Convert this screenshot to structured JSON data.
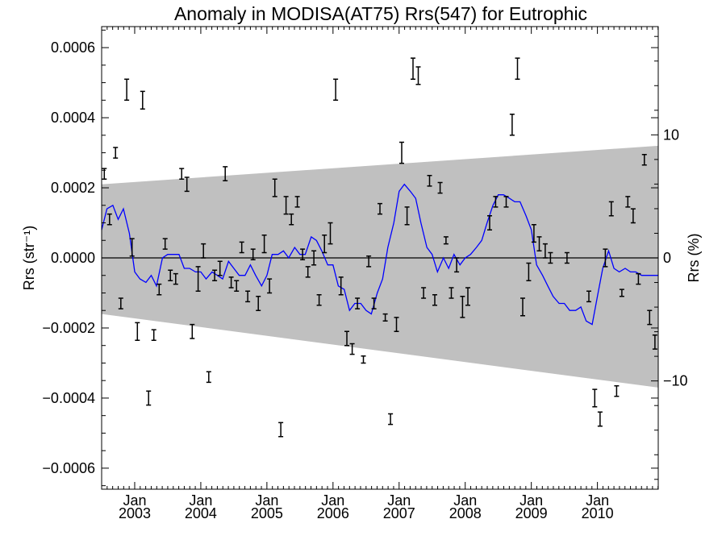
{
  "chart_data": {
    "type": "scatter",
    "title": "Anomaly in MODISA(AT75) Rrs(547) for Eutrophic",
    "ylabel_left": "Rrs (str⁻¹)",
    "ylabel_right": "Rrs (%)",
    "xlim": [
      2002.5,
      2010.92
    ],
    "ylim": [
      -0.00066,
      0.00066
    ],
    "y2lim": [
      -18.8,
      18.8
    ],
    "y_ticks": [
      -0.0006,
      -0.0004,
      -0.0002,
      0.0,
      0.0002,
      0.0004,
      0.0006
    ],
    "y_tick_labels": [
      "−0.0006",
      "−0.0004",
      "−0.0002",
      "0.0000",
      "0.0002",
      "0.0004",
      "0.0006"
    ],
    "y2_ticks": [
      -10,
      0,
      10
    ],
    "y2_tick_labels": [
      "−10",
      "0",
      "10"
    ],
    "x_ticks": [
      {
        "x": 2003.0,
        "month": "Jan",
        "year": "2003"
      },
      {
        "x": 2004.0,
        "month": "Jan",
        "year": "2004"
      },
      {
        "x": 2005.0,
        "month": "Jan",
        "year": "2005"
      },
      {
        "x": 2006.0,
        "month": "Jan",
        "year": "2006"
      },
      {
        "x": 2007.0,
        "month": "Jan",
        "year": "2007"
      },
      {
        "x": 2008.0,
        "month": "Jan",
        "year": "2008"
      },
      {
        "x": 2009.0,
        "month": "Jan",
        "year": "2009"
      },
      {
        "x": 2010.0,
        "month": "Jan",
        "year": "2010"
      }
    ],
    "zero_line": 0.0,
    "band": {
      "x": [
        2002.5,
        2010.92
      ],
      "upper": [
        0.00021,
        0.00032
      ],
      "lower": [
        -0.00016,
        -0.00037
      ],
      "color": "#c0c0c0"
    },
    "colors": {
      "line": "#0000ff",
      "points": "#000000",
      "band": "#c0c0c0"
    },
    "series": [
      {
        "kind": "errorbar",
        "x": [
          2002.54,
          2002.62,
          2002.71,
          2002.79,
          2002.88,
          2002.96,
          2003.04,
          2003.12,
          2003.21,
          2003.29,
          2003.37,
          2003.46,
          2003.54,
          2003.62,
          2003.71,
          2003.79,
          2003.87,
          2003.96,
          2004.04,
          2004.12,
          2004.21,
          2004.29,
          2004.37,
          2004.46,
          2004.54,
          2004.62,
          2004.71,
          2004.79,
          2004.87,
          2004.96,
          2005.04,
          2005.12,
          2005.21,
          2005.29,
          2005.37,
          2005.46,
          2005.54,
          2005.62,
          2005.71,
          2005.79,
          2005.87,
          2005.96,
          2006.04,
          2006.12,
          2006.21,
          2006.29,
          2006.37,
          2006.46,
          2006.54,
          2006.62,
          2006.71,
          2006.79,
          2006.87,
          2006.96,
          2007.04,
          2007.12,
          2007.21,
          2007.29,
          2007.37,
          2007.46,
          2007.54,
          2007.62,
          2007.71,
          2007.79,
          2007.87,
          2007.96,
          2008.04,
          2008.37,
          2008.46,
          2008.62,
          2008.71,
          2008.79,
          2008.87,
          2008.96,
          2009.04,
          2009.12,
          2009.21,
          2009.29,
          2009.54,
          2009.87,
          2009.96,
          2010.04,
          2010.12,
          2010.21,
          2010.29,
          2010.37,
          2010.46,
          2010.54,
          2010.62,
          2010.71,
          2010.79,
          2010.87
        ],
        "y": [
          0.00024,
          0.00011,
          0.0003,
          -0.00013,
          0.00048,
          3e-05,
          -0.00021,
          0.00045,
          -0.0004,
          -0.00022,
          -9e-05,
          4e-05,
          -5e-05,
          -6e-05,
          0.00024,
          0.00021,
          -0.00021,
          -6e-05,
          2e-05,
          -0.00034,
          -5e-05,
          -3e-05,
          0.00024,
          -7e-05,
          -8e-05,
          3e-05,
          -0.00011,
          1e-05,
          -0.00013,
          4e-05,
          -8e-05,
          0.0002,
          -0.00049,
          0.00015,
          0.00011,
          0.00016,
          1e-05,
          -4e-05,
          0.0,
          -0.00012,
          4e-05,
          7e-05,
          0.00048,
          -8e-05,
          -0.00023,
          -0.00026,
          -0.00013,
          -0.00029,
          -1e-05,
          -0.00013,
          0.00014,
          -0.00017,
          -0.00046,
          -0.00019,
          0.0003,
          0.00012,
          0.00054,
          0.00052,
          -0.0001,
          0.00022,
          -0.00012,
          0.0002,
          5e-05,
          -0.0001,
          -2e-05,
          -0.00014,
          -0.00011,
          0.0001,
          0.00016,
          0.00016,
          0.00038,
          0.00054,
          -0.00014,
          -4e-05,
          7e-05,
          4e-05,
          2e-05,
          0.0,
          0.0,
          -0.00011,
          -0.0004,
          -0.00046,
          0.0,
          0.00014,
          -0.00038,
          -0.0001,
          0.00016,
          0.00012,
          -6e-05,
          0.00028,
          -0.00017,
          -0.00024
        ],
        "err": [
          1.5e-05,
          1.5e-05,
          1.5e-05,
          1.5e-05,
          3e-05,
          2.5e-05,
          2.5e-05,
          2.5e-05,
          2e-05,
          1.5e-05,
          1.5e-05,
          1.5e-05,
          1.5e-05,
          1.5e-05,
          1.5e-05,
          2e-05,
          2e-05,
          3.5e-05,
          2e-05,
          1.5e-05,
          1.5e-05,
          2e-05,
          2e-05,
          1.5e-05,
          1.5e-05,
          1.5e-05,
          1.5e-05,
          1.5e-05,
          2e-05,
          2.5e-05,
          2e-05,
          2.5e-05,
          2e-05,
          2.5e-05,
          1.5e-05,
          1.5e-05,
          1.5e-05,
          1.5e-05,
          2e-05,
          1.5e-05,
          2.5e-05,
          3e-05,
          3e-05,
          2.5e-05,
          2e-05,
          1.5e-05,
          1.5e-05,
          1e-05,
          1.5e-05,
          1.5e-05,
          1.5e-05,
          1e-05,
          1.5e-05,
          2e-05,
          3e-05,
          2.5e-05,
          3e-05,
          2.5e-05,
          1.5e-05,
          1.5e-05,
          1.5e-05,
          1.5e-05,
          1e-05,
          1.5e-05,
          2e-05,
          3e-05,
          2.5e-05,
          2e-05,
          1.5e-05,
          1.5e-05,
          3e-05,
          3e-05,
          2.5e-05,
          2.5e-05,
          2.5e-05,
          2e-05,
          2e-05,
          1.5e-05,
          1.5e-05,
          1.5e-05,
          2.5e-05,
          2e-05,
          2.5e-05,
          2e-05,
          1.5e-05,
          1e-05,
          1.5e-05,
          2e-05,
          1.5e-05,
          1.5e-05,
          2e-05,
          2e-05
        ]
      },
      {
        "kind": "line",
        "x": [
          2002.5,
          2002.58,
          2002.67,
          2002.75,
          2002.83,
          2002.92,
          2003.0,
          2003.08,
          2003.17,
          2003.25,
          2003.33,
          2003.42,
          2003.5,
          2003.58,
          2003.67,
          2003.75,
          2003.83,
          2003.92,
          2004.0,
          2004.08,
          2004.17,
          2004.25,
          2004.33,
          2004.42,
          2004.5,
          2004.58,
          2004.67,
          2004.75,
          2004.83,
          2004.92,
          2005.0,
          2005.08,
          2005.17,
          2005.25,
          2005.33,
          2005.42,
          2005.5,
          2005.58,
          2005.67,
          2005.75,
          2005.83,
          2005.92,
          2006.0,
          2006.08,
          2006.17,
          2006.25,
          2006.33,
          2006.42,
          2006.5,
          2006.58,
          2006.67,
          2006.75,
          2006.83,
          2006.92,
          2007.0,
          2007.08,
          2007.17,
          2007.25,
          2007.33,
          2007.42,
          2007.5,
          2007.58,
          2007.67,
          2007.75,
          2007.83,
          2007.92,
          2008.0,
          2008.08,
          2008.17,
          2008.25,
          2008.33,
          2008.42,
          2008.5,
          2008.58,
          2008.67,
          2008.75,
          2008.83,
          2008.92,
          2009.0,
          2009.08,
          2009.17,
          2009.25,
          2009.33,
          2009.42,
          2009.5,
          2009.58,
          2009.67,
          2009.75,
          2009.83,
          2009.92,
          2010.0,
          2010.08,
          2010.17,
          2010.25,
          2010.33,
          2010.42,
          2010.5,
          2010.58,
          2010.67,
          2010.75,
          2010.83,
          2010.92
        ],
        "y": [
          8e-05,
          0.00014,
          0.00015,
          0.00011,
          0.00014,
          7e-05,
          -4e-05,
          -6e-05,
          -7e-05,
          -5e-05,
          -8e-05,
          0.0,
          1e-05,
          1e-05,
          1e-05,
          -3e-05,
          -3e-05,
          -4e-05,
          -4e-05,
          -6e-05,
          -4e-05,
          -5e-05,
          -6e-05,
          -1e-05,
          -3e-05,
          -5e-05,
          -5e-05,
          -2e-05,
          -5e-05,
          -8e-05,
          -5e-05,
          1e-05,
          1e-05,
          2e-05,
          0.0,
          3e-05,
          1e-05,
          1e-05,
          6e-05,
          5e-05,
          2e-05,
          -2e-05,
          -2e-05,
          -8e-05,
          -9e-05,
          -0.00015,
          -0.00013,
          -0.00013,
          -0.00015,
          -0.00016,
          -0.0001,
          -6e-05,
          3e-05,
          0.0001,
          0.00019,
          0.00021,
          0.00019,
          0.00017,
          0.0001,
          3e-05,
          1e-05,
          -4e-05,
          0.0,
          -3e-05,
          1e-05,
          -2e-05,
          0.0,
          1e-05,
          3e-05,
          5e-05,
          0.0001,
          0.00015,
          0.00018,
          0.00018,
          0.00017,
          0.00016,
          0.00016,
          0.00012,
          8e-05,
          -2e-05,
          -5e-05,
          -8e-05,
          -0.00011,
          -0.00013,
          -0.00013,
          -0.00015,
          -0.00015,
          -0.00014,
          -0.00018,
          -0.00019,
          -0.00011,
          -3e-05,
          2e-05,
          -3e-05,
          -4e-05,
          -3e-05,
          -4e-05,
          -4e-05,
          -5e-05,
          -5e-05,
          -5e-05,
          -5e-05
        ]
      }
    ]
  }
}
